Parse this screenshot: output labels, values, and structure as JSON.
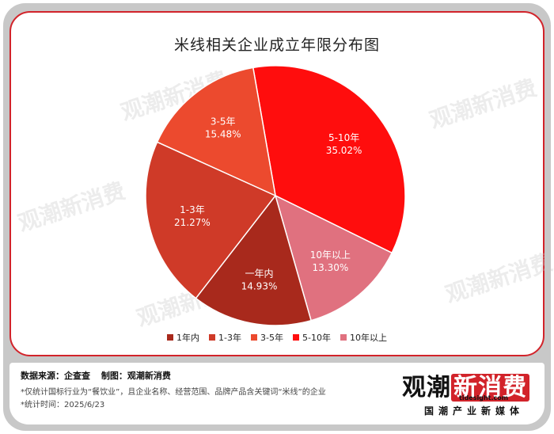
{
  "title": "米线相关企业成立年限分布图",
  "chart_data": {
    "type": "pie",
    "title": "米线相关企业成立年限分布图",
    "slices": [
      {
        "name": "1年内",
        "label": "一年内",
        "value": 14.93,
        "pct_label": "14.93%",
        "color": "#a8291c"
      },
      {
        "name": "1-3年",
        "label": "1-3年",
        "value": 21.27,
        "pct_label": "21.27%",
        "color": "#cf3a28"
      },
      {
        "name": "3-5年",
        "label": "3-5年",
        "value": 15.48,
        "pct_label": "15.48%",
        "color": "#ec4a2e"
      },
      {
        "name": "5-10年",
        "label": "5-10年",
        "value": 35.02,
        "pct_label": "35.02%",
        "color": "#ff0d0d"
      },
      {
        "name": "10年以上",
        "label": "10年以上",
        "value": 13.3,
        "pct_label": "13.30%",
        "color": "#e0717f"
      }
    ],
    "legend": [
      "1年内",
      "1-3年",
      "3-5年",
      "5-10年",
      "10年以上"
    ],
    "legend_position": "bottom"
  },
  "footer": {
    "source": "数据来源：企查查",
    "maker": "制图：观潮新消费",
    "note1": "*仅统计国标行业为“餐饮业”，且企业名称、经营范围、品牌产品含关键词“米线”的企业",
    "note2": "*统计时间：2025/6/23"
  },
  "brand": {
    "name_left": "观潮",
    "name_right": "新消费",
    "url": "tidesight.com",
    "sub": "国潮产业新媒体"
  },
  "watermark": "观潮新消费"
}
